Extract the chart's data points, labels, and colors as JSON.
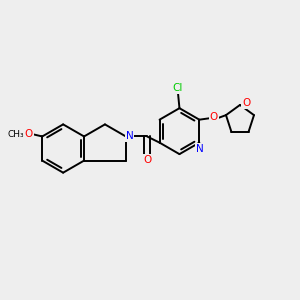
{
  "background_color": "#eeeeee",
  "bond_color": "#000000",
  "atom_colors": {
    "N": "#0000ff",
    "O": "#ff0000",
    "Cl": "#00cc00",
    "C": "#000000"
  },
  "figsize": [
    3.0,
    3.0
  ],
  "dpi": 100
}
